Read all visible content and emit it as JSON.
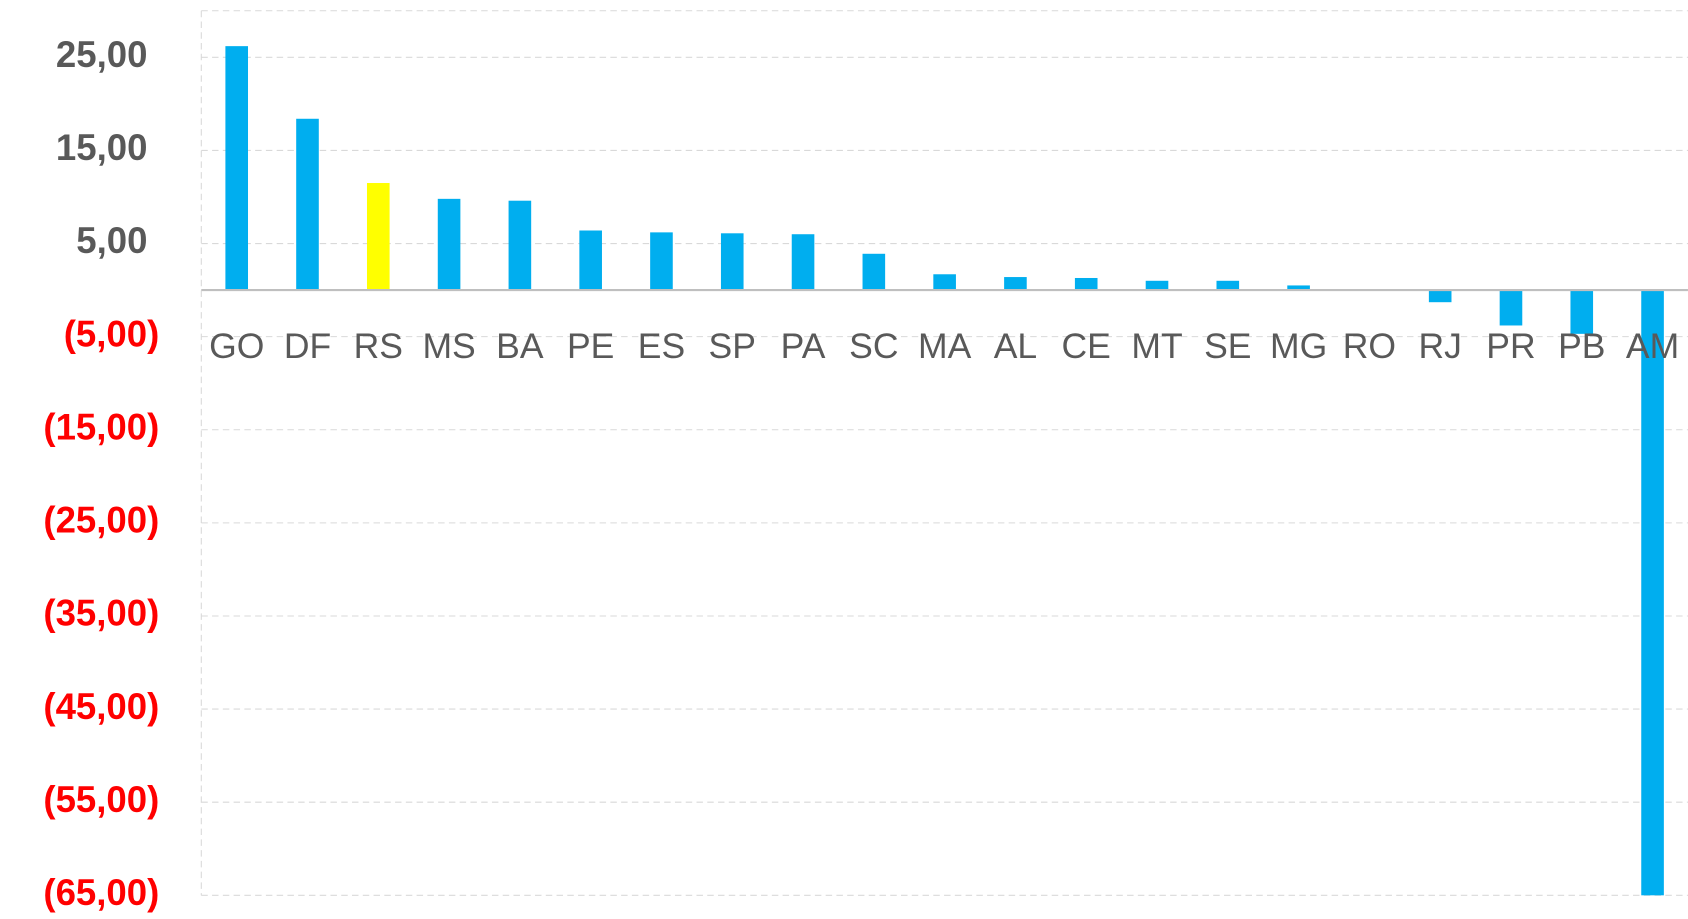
{
  "chart_data": {
    "type": "bar",
    "categories": [
      "GO",
      "DF",
      "RS",
      "MS",
      "BA",
      "PE",
      "ES",
      "SP",
      "PA",
      "SC",
      "MA",
      "AL",
      "CE",
      "MT",
      "SE",
      "MG",
      "RO",
      "RJ",
      "PR",
      "PB",
      "AM"
    ],
    "values": [
      26.2,
      18.4,
      11.5,
      9.8,
      9.6,
      6.4,
      6.2,
      6.1,
      6.0,
      3.9,
      1.7,
      1.4,
      1.3,
      1.0,
      1.0,
      0.5,
      0,
      -1.3,
      -3.8,
      -4.7,
      -65.0
    ],
    "colors": [
      "#00aeef",
      "#00aeef",
      "#ffff00",
      "#00aeef",
      "#00aeef",
      "#00aeef",
      "#00aeef",
      "#00aeef",
      "#00aeef",
      "#00aeef",
      "#00aeef",
      "#00aeef",
      "#00aeef",
      "#00aeef",
      "#00aeef",
      "#00aeef",
      "#00aeef",
      "#00aeef",
      "#00aeef",
      "#00aeef",
      "#00aeef"
    ],
    "ylim": [
      -65,
      30
    ],
    "yticks": [
      {
        "value": 25,
        "label": "25,00"
      },
      {
        "value": 15,
        "label": "15,00"
      },
      {
        "value": 5,
        "label": "5,00"
      },
      {
        "value": -5,
        "label": "(5,00)"
      },
      {
        "value": -15,
        "label": "(15,00)"
      },
      {
        "value": -25,
        "label": "(25,00)"
      },
      {
        "value": -35,
        "label": "(35,00)"
      },
      {
        "value": -45,
        "label": "(45,00)"
      },
      {
        "value": -55,
        "label": "(55,00)"
      },
      {
        "value": -65,
        "label": "(65,00)"
      }
    ],
    "grid": true,
    "tick_color": "#595959",
    "negative_tick_color": "#ff0000"
  }
}
